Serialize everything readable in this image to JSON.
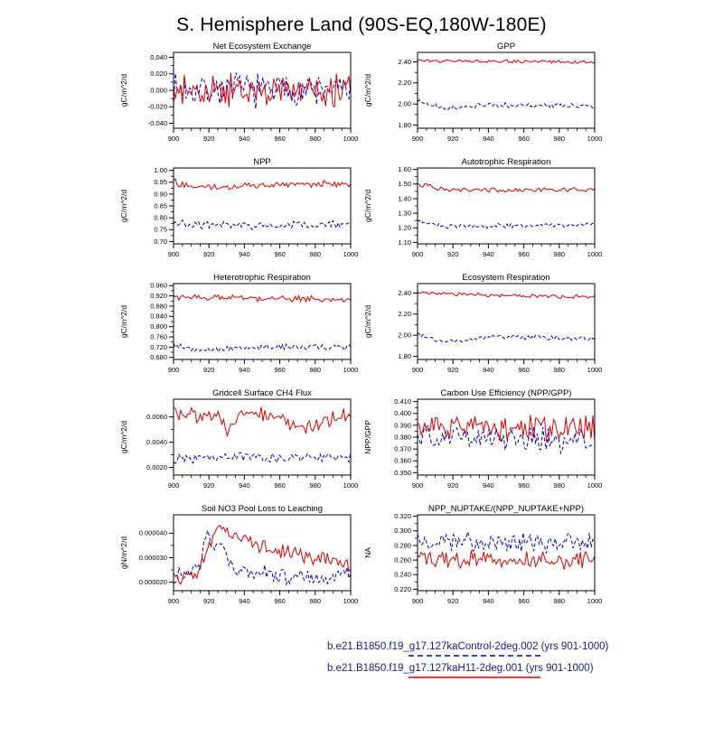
{
  "page_title": "S. Hemisphere Land (90S-EQ,180W-180E)",
  "legend": {
    "entries": [
      {
        "label": "b.e21.B1850.f19_g17.127kaControl-2deg.002 (yrs 901-1000)",
        "color": "#0000cc",
        "style": "dashed"
      },
      {
        "label": "b.e21.B1850.f19_g17.127kaH11-2deg.001 (yrs 901-1000)",
        "color": "#dd0000",
        "style": "solid"
      }
    ]
  },
  "chart_data": {
    "type": "line",
    "x_range": [
      900,
      1000
    ],
    "xticks": [
      900,
      920,
      940,
      960,
      980,
      1000
    ],
    "xlabel": "",
    "grid": false,
    "legend_position": "bottom-right",
    "plots": [
      {
        "title": "Net Ecosystem Exchange",
        "ylabel": "gC/m^2/d",
        "ylim": [
          -0.046,
          0.046
        ],
        "yticks": [
          "-0.040",
          "-0.020",
          "0.000",
          "0.020",
          "0.040"
        ],
        "series": [
          {
            "name": "127kaControl-2deg.002",
            "color": "#0000cc",
            "style": "dashed",
            "anchors": [
              [
                900,
                0.002
              ],
              [
                1000,
                0.0
              ]
            ],
            "noise": 0.016
          },
          {
            "name": "127kaH11-2deg.001",
            "color": "#dd0000",
            "style": "solid",
            "anchors": [
              [
                900,
                -0.002
              ],
              [
                1000,
                0.0
              ]
            ],
            "noise": 0.016
          }
        ]
      },
      {
        "title": "GPP",
        "ylabel": "gC/m^2/d",
        "ylim": [
          1.77,
          2.49
        ],
        "yticks": [
          "1.80",
          "2.00",
          "2.20",
          "2.40"
        ],
        "series": [
          {
            "name": "127kaControl-2deg.002",
            "color": "#0000cc",
            "style": "dashed",
            "anchors": [
              [
                900,
                2.03
              ],
              [
                915,
                1.96
              ],
              [
                940,
                1.99
              ],
              [
                1000,
                1.98
              ]
            ],
            "noise": 0.018
          },
          {
            "name": "127kaH11-2deg.001",
            "color": "#dd0000",
            "style": "solid",
            "anchors": [
              [
                900,
                2.41
              ],
              [
                1000,
                2.4
              ]
            ],
            "noise": 0.012
          }
        ]
      },
      {
        "title": "NPP",
        "ylabel": "gC/m^2/d",
        "ylim": [
          0.69,
          1.01
        ],
        "yticks": [
          "0.70",
          "0.75",
          "0.80",
          "0.85",
          "0.90",
          "0.95",
          "1.00"
        ],
        "series": [
          {
            "name": "127kaControl-2deg.002",
            "color": "#0000cc",
            "style": "dashed",
            "anchors": [
              [
                900,
                0.78
              ],
              [
                920,
                0.765
              ],
              [
                1000,
                0.77
              ]
            ],
            "noise": 0.013
          },
          {
            "name": "127kaH11-2deg.001",
            "color": "#dd0000",
            "style": "solid",
            "anchors": [
              [
                900,
                0.952
              ],
              [
                910,
                0.93
              ],
              [
                1000,
                0.945
              ]
            ],
            "noise": 0.011
          }
        ]
      },
      {
        "title": "Autotrophic Respiration",
        "ylabel": "gC/m^2/d",
        "ylim": [
          1.09,
          1.61
        ],
        "yticks": [
          "1.10",
          "1.20",
          "1.30",
          "1.40",
          "1.50",
          "1.60"
        ],
        "series": [
          {
            "name": "127kaControl-2deg.002",
            "color": "#0000cc",
            "style": "dashed",
            "anchors": [
              [
                900,
                1.25
              ],
              [
                915,
                1.21
              ],
              [
                1000,
                1.22
              ]
            ],
            "noise": 0.012
          },
          {
            "name": "127kaH11-2deg.001",
            "color": "#dd0000",
            "style": "solid",
            "anchors": [
              [
                900,
                1.5
              ],
              [
                915,
                1.46
              ],
              [
                1000,
                1.46
              ]
            ],
            "noise": 0.012
          }
        ]
      },
      {
        "title": "Heterotrophic Respiration",
        "ylabel": "gC/m^2/d",
        "ylim": [
          0.672,
          0.968
        ],
        "yticks": [
          "0.680",
          "0.720",
          "0.760",
          "0.800",
          "0.840",
          "0.880",
          "0.920",
          "0.960"
        ],
        "series": [
          {
            "name": "127kaControl-2deg.002",
            "color": "#0000cc",
            "style": "dashed",
            "anchors": [
              [
                900,
                0.725
              ],
              [
                920,
                0.705
              ],
              [
                940,
                0.72
              ],
              [
                1000,
                0.72
              ]
            ],
            "noise": 0.009
          },
          {
            "name": "127kaH11-2deg.001",
            "color": "#dd0000",
            "style": "solid",
            "anchors": [
              [
                900,
                0.915
              ],
              [
                1000,
                0.905
              ]
            ],
            "noise": 0.009
          }
        ]
      },
      {
        "title": "Ecosystem Respiration",
        "ylabel": "gC/m^2/d",
        "ylim": [
          1.77,
          2.49
        ],
        "yticks": [
          "1.80",
          "2.00",
          "2.20",
          "2.40"
        ],
        "series": [
          {
            "name": "127kaControl-2deg.002",
            "color": "#0000cc",
            "style": "dashed",
            "anchors": [
              [
                900,
                2.01
              ],
              [
                915,
                1.94
              ],
              [
                940,
                1.98
              ],
              [
                1000,
                1.97
              ]
            ],
            "noise": 0.018
          },
          {
            "name": "127kaH11-2deg.001",
            "color": "#dd0000",
            "style": "solid",
            "anchors": [
              [
                900,
                2.41
              ],
              [
                940,
                2.38
              ],
              [
                1000,
                2.36
              ]
            ],
            "noise": 0.015
          }
        ]
      },
      {
        "title": "Gridcell Surface CH4 Flux",
        "ylabel": "gC/m^2/d",
        "ylim": [
          0.0014,
          0.0074
        ],
        "yticks": [
          "0.0020",
          "0.0040",
          "0.0060"
        ],
        "series": [
          {
            "name": "127kaControl-2deg.002",
            "color": "#0000cc",
            "style": "dashed",
            "anchors": [
              [
                900,
                0.0026
              ],
              [
                930,
                0.0029
              ],
              [
                960,
                0.0027
              ],
              [
                1000,
                0.0028
              ]
            ],
            "noise": 0.0003
          },
          {
            "name": "127kaH11-2deg.001",
            "color": "#dd0000",
            "style": "solid",
            "anchors": [
              [
                900,
                0.0064
              ],
              [
                925,
                0.006
              ],
              [
                930,
                0.0047
              ],
              [
                938,
                0.0066
              ],
              [
                960,
                0.0058
              ],
              [
                975,
                0.0052
              ],
              [
                1000,
                0.0062
              ]
            ],
            "noise": 0.0005
          }
        ]
      },
      {
        "title": "Carbon Use Efficiency (NPP/GPP)",
        "ylabel": "NPP/GPP",
        "ylim": [
          0.348,
          0.412
        ],
        "yticks": [
          "0.350",
          "0.360",
          "0.370",
          "0.380",
          "0.390",
          "0.400",
          "0.410"
        ],
        "series": [
          {
            "name": "127kaControl-2deg.002",
            "color": "#0000cc",
            "style": "dashed",
            "anchors": [
              [
                900,
                0.381
              ],
              [
                1000,
                0.376
              ]
            ],
            "noise": 0.008
          },
          {
            "name": "127kaH11-2deg.001",
            "color": "#dd0000",
            "style": "solid",
            "anchors": [
              [
                900,
                0.387
              ],
              [
                1000,
                0.388
              ]
            ],
            "noise": 0.008
          }
        ]
      },
      {
        "title": "Soil NO3 Pool Loss to Leaching",
        "ylabel": "gN/m^2/d",
        "ylim": [
          1.65e-05,
          4.75e-05
        ],
        "yticks": [
          "0.000020",
          "0.000030",
          "0.000040"
        ],
        "series": [
          {
            "name": "127kaControl-2deg.002",
            "color": "#0000cc",
            "style": "dashed",
            "anchors": [
              [
                900,
                2.2e-05
              ],
              [
                915,
                2.7e-05
              ],
              [
                919,
                4.1e-05
              ],
              [
                923,
                3e-05
              ],
              [
                927,
                3.9e-05
              ],
              [
                933,
                2.6e-05
              ],
              [
                940,
                2.4e-05
              ],
              [
                955,
                2.3e-05
              ],
              [
                970,
                2.2e-05
              ],
              [
                985,
                2.2e-05
              ],
              [
                1000,
                2.4e-05
              ]
            ],
            "noise": 2.5e-06
          },
          {
            "name": "127kaH11-2deg.001",
            "color": "#dd0000",
            "style": "solid",
            "anchors": [
              [
                900,
                2.1e-05
              ],
              [
                912,
                2.2e-05
              ],
              [
                922,
                3.8e-05
              ],
              [
                928,
                4.4e-05
              ],
              [
                934,
                3.8e-05
              ],
              [
                942,
                3.7e-05
              ],
              [
                952,
                3.4e-05
              ],
              [
                965,
                3.2e-05
              ],
              [
                980,
                3e-05
              ],
              [
                1000,
                2.7e-05
              ]
            ],
            "noise": 2.5e-06
          }
        ]
      },
      {
        "title": "NPP_NUPTAKE/(NPP_NUPTAKE+NPP)",
        "ylabel": "NA",
        "ylim": [
          0.218,
          0.322
        ],
        "yticks": [
          "0.220",
          "0.240",
          "0.260",
          "0.280",
          "0.300",
          "0.320"
        ],
        "series": [
          {
            "name": "127kaControl-2deg.002",
            "color": "#0000cc",
            "style": "dashed",
            "anchors": [
              [
                900,
                0.287
              ],
              [
                1000,
                0.283
              ]
            ],
            "noise": 0.011
          },
          {
            "name": "127kaH11-2deg.001",
            "color": "#dd0000",
            "style": "solid",
            "anchors": [
              [
                900,
                0.262
              ],
              [
                1000,
                0.259
              ]
            ],
            "noise": 0.009
          }
        ]
      }
    ]
  }
}
